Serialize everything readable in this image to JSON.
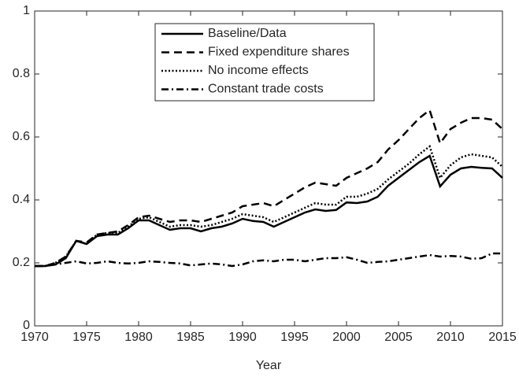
{
  "chart_data": {
    "type": "line",
    "x_label": "Year",
    "x": [
      1970,
      1971,
      1972,
      1973,
      1974,
      1975,
      1976,
      1977,
      1978,
      1979,
      1980,
      1981,
      1982,
      1983,
      1984,
      1985,
      1986,
      1987,
      1988,
      1989,
      1990,
      1991,
      1992,
      1993,
      1994,
      1995,
      1996,
      1997,
      1998,
      1999,
      2000,
      2001,
      2002,
      2003,
      2004,
      2005,
      2006,
      2007,
      2008,
      2009,
      2010,
      2011,
      2012,
      2013,
      2014,
      2015
    ],
    "xlim": [
      1970,
      2015
    ],
    "xticks": [
      1970,
      1975,
      1980,
      1985,
      1990,
      1995,
      2000,
      2005,
      2010,
      2015
    ],
    "ylim": [
      0,
      1
    ],
    "yticks": [
      0,
      0.2,
      0.4,
      0.6,
      0.8,
      1
    ],
    "legend": "top",
    "series": [
      {
        "name": "Baseline/Data",
        "color": "#000000",
        "linestyle": "solid",
        "values": [
          0.19,
          0.19,
          0.195,
          0.215,
          0.27,
          0.26,
          0.285,
          0.29,
          0.29,
          0.31,
          0.335,
          0.335,
          0.32,
          0.305,
          0.31,
          0.31,
          0.3,
          0.31,
          0.315,
          0.325,
          0.34,
          0.333,
          0.33,
          0.315,
          0.33,
          0.345,
          0.36,
          0.37,
          0.365,
          0.368,
          0.392,
          0.39,
          0.395,
          0.41,
          0.445,
          0.47,
          0.495,
          0.52,
          0.54,
          0.443,
          0.48,
          0.5,
          0.505,
          0.502,
          0.5,
          0.47
        ]
      },
      {
        "name": "Fixed expenditure shares",
        "color": "#000000",
        "linestyle": "dashed",
        "values": [
          0.19,
          0.19,
          0.2,
          0.22,
          0.27,
          0.265,
          0.29,
          0.295,
          0.3,
          0.32,
          0.345,
          0.35,
          0.34,
          0.33,
          0.335,
          0.335,
          0.33,
          0.34,
          0.35,
          0.36,
          0.38,
          0.385,
          0.39,
          0.38,
          0.4,
          0.42,
          0.44,
          0.455,
          0.45,
          0.445,
          0.47,
          0.485,
          0.5,
          0.52,
          0.56,
          0.59,
          0.625,
          0.66,
          0.685,
          0.58,
          0.625,
          0.645,
          0.66,
          0.66,
          0.655,
          0.625
        ]
      },
      {
        "name": "No income effects",
        "color": "#000000",
        "linestyle": "dotted",
        "values": [
          0.19,
          0.19,
          0.2,
          0.22,
          0.27,
          0.26,
          0.29,
          0.295,
          0.295,
          0.315,
          0.34,
          0.345,
          0.33,
          0.315,
          0.32,
          0.32,
          0.315,
          0.32,
          0.33,
          0.34,
          0.355,
          0.35,
          0.345,
          0.33,
          0.345,
          0.36,
          0.375,
          0.39,
          0.385,
          0.385,
          0.41,
          0.41,
          0.42,
          0.435,
          0.465,
          0.49,
          0.515,
          0.545,
          0.57,
          0.47,
          0.51,
          0.535,
          0.545,
          0.54,
          0.535,
          0.505
        ]
      },
      {
        "name": "Constant trade costs",
        "color": "#000000",
        "linestyle": "dashdot",
        "values": [
          0.19,
          0.19,
          0.195,
          0.2,
          0.205,
          0.198,
          0.2,
          0.205,
          0.2,
          0.198,
          0.2,
          0.205,
          0.203,
          0.2,
          0.198,
          0.192,
          0.195,
          0.198,
          0.195,
          0.19,
          0.195,
          0.205,
          0.208,
          0.205,
          0.21,
          0.21,
          0.205,
          0.21,
          0.215,
          0.215,
          0.218,
          0.21,
          0.2,
          0.203,
          0.205,
          0.21,
          0.215,
          0.22,
          0.225,
          0.22,
          0.222,
          0.22,
          0.213,
          0.215,
          0.23,
          0.23
        ]
      }
    ]
  }
}
